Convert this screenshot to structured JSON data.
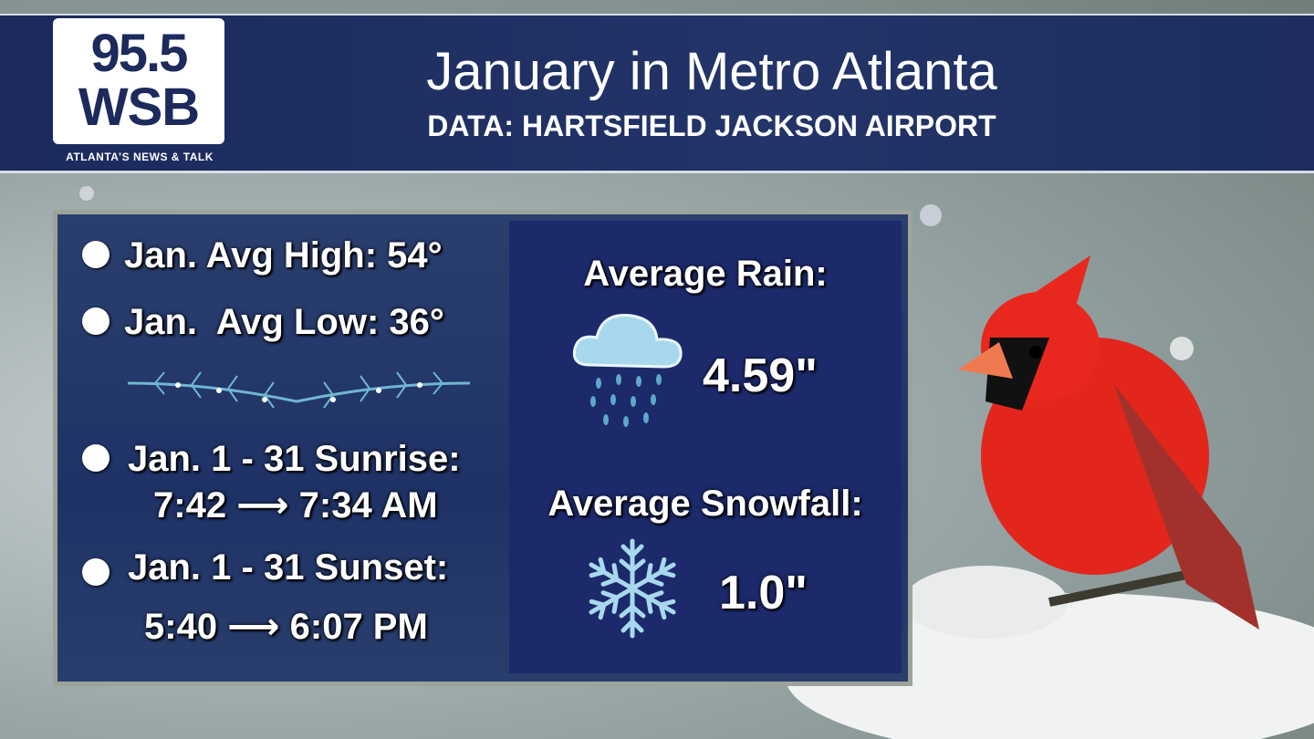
{
  "logo": {
    "number": "95.5",
    "station": "WSB",
    "tagline": "ATLANTA’S NEWS & TALK"
  },
  "header": {
    "title": "January in Metro Atlanta",
    "subtitle": "DATA: HARTSFIELD JACKSON AIRPORT"
  },
  "left_panel": {
    "items": [
      {
        "lines": [
          "Jan. Avg High: 54°"
        ]
      },
      {
        "lines": [
          "Jan.  Avg Low: 36°"
        ]
      },
      {
        "lines": [
          "Jan. 1 - 31 Sunrise:",
          "7:42 ⟶ 7:34 AM"
        ]
      },
      {
        "lines": [
          "Jan. 1 - 31 Sunset:",
          "5:40 ⟶ 6:07 PM"
        ]
      }
    ]
  },
  "right_panel": {
    "rain": {
      "label": "Average Rain:",
      "value": "4.59\""
    },
    "snow": {
      "label": "Average Snowfall:",
      "value": "1.0\""
    }
  }
}
